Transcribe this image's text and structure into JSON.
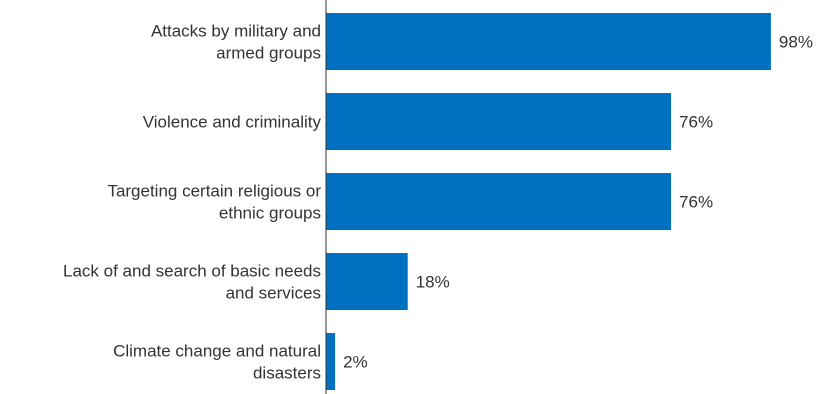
{
  "chart_data": {
    "type": "bar",
    "orientation": "horizontal",
    "categories": [
      [
        "Attacks by military and",
        "armed groups"
      ],
      [
        "Violence and criminality"
      ],
      [
        "Targeting certain religious or",
        "ethnic groups"
      ],
      [
        "Lack of and search of basic needs",
        "and services"
      ],
      [
        "Climate change and natural",
        "disasters"
      ]
    ],
    "values": [
      98,
      76,
      76,
      18,
      2
    ],
    "value_labels": [
      "98%",
      "76%",
      "76%",
      "18%",
      "2%"
    ],
    "unit": "%",
    "xlim": [
      0,
      100
    ],
    "grid": false,
    "legend": "none",
    "bar_color": "#0070c0",
    "title": "",
    "xlabel": "",
    "ylabel": ""
  }
}
